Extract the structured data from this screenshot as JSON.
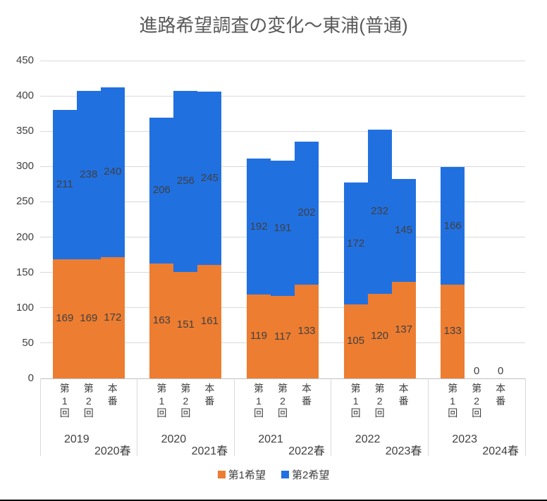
{
  "title": "進路希望調査の変化～東浦(普通)",
  "colors": {
    "series1": "#ED7D31",
    "series2": "#2170E0",
    "grid": "#D9D9D9",
    "axis_line": "#BFBFBF",
    "axis_text": "#404040",
    "title_text": "#595959"
  },
  "legend": {
    "items": [
      {
        "label": "第1希望",
        "color": "#ED7D31"
      },
      {
        "label": "第2希望",
        "color": "#2170E0"
      }
    ]
  },
  "chart_data": {
    "type": "bar",
    "stacked": true,
    "title": "進路希望調査の変化～東浦(普通)",
    "ylim": [
      0,
      450
    ],
    "ytick_interval": 50,
    "grid": true,
    "legend_position": "bottom",
    "bar_labels": [
      "第1回",
      "第2回",
      "本番"
    ],
    "zero_label": "0",
    "groups": [
      {
        "year": "2019",
        "season": "2020春",
        "first_choice": [
          169,
          169,
          172
        ],
        "second_choice": [
          211,
          238,
          240
        ]
      },
      {
        "year": "2020",
        "season": "2021春",
        "first_choice": [
          163,
          151,
          161
        ],
        "second_choice": [
          206,
          256,
          245
        ]
      },
      {
        "year": "2021",
        "season": "2022春",
        "first_choice": [
          119,
          117,
          133
        ],
        "second_choice": [
          192,
          191,
          202
        ]
      },
      {
        "year": "2022",
        "season": "2023春",
        "first_choice": [
          105,
          120,
          137
        ],
        "second_choice": [
          172,
          232,
          145
        ]
      },
      {
        "year": "2023",
        "season": "2024春",
        "first_choice": [
          133,
          0,
          0
        ],
        "second_choice": [
          166,
          0,
          0
        ]
      }
    ],
    "categories": [
      "第1回",
      "第2回",
      "本番",
      "第1回",
      "第2回",
      "本番",
      "第1回",
      "第2回",
      "本番",
      "第1回",
      "第2回",
      "本番",
      "第1回",
      "第2回",
      "本番"
    ],
    "series": [
      {
        "name": "第1希望",
        "color": "#ED7D31",
        "values": [
          169,
          169,
          172,
          163,
          151,
          161,
          119,
          117,
          133,
          105,
          120,
          137,
          133,
          0,
          0
        ]
      },
      {
        "name": "第2希望",
        "color": "#2170E0",
        "values": [
          211,
          238,
          240,
          206,
          256,
          245,
          192,
          191,
          202,
          172,
          232,
          145,
          166,
          0,
          0
        ]
      }
    ]
  }
}
